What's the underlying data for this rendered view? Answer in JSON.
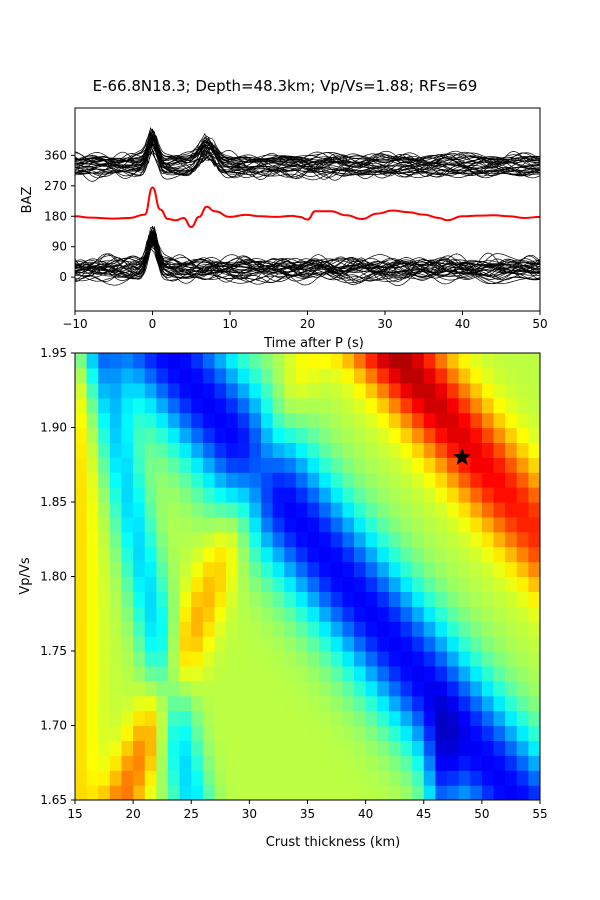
{
  "title": "E-66.8N18.3; Depth=48.3km; Vp/Vs=1.88; RFs=69",
  "chart_data": [
    {
      "type": "line",
      "panel": "receiver functions",
      "xlabel": "Time after P (s)",
      "ylabel": "BAZ",
      "xlim": [
        -10,
        50
      ],
      "ylim": [
        -100,
        500
      ],
      "xticks": [
        -10,
        0,
        10,
        20,
        30,
        40,
        50
      ],
      "yticks": [
        0,
        90,
        180,
        270,
        360
      ],
      "series": [
        {
          "role": "individual RFs (upper group)",
          "color": "#000000",
          "baseline": 330,
          "peaks": [
            {
              "t": 0,
              "amp": 90
            },
            {
              "t": 7,
              "amp": 60
            }
          ]
        },
        {
          "role": "stacked RF",
          "color": "#ff0000",
          "baseline": 180,
          "points": [
            [
              -10,
              180
            ],
            [
              -8,
              176
            ],
            [
              -5,
              173
            ],
            [
              -3,
              175
            ],
            [
              -1,
              185
            ],
            [
              0,
              265
            ],
            [
              1,
              200
            ],
            [
              2,
              172
            ],
            [
              3,
              168
            ],
            [
              4,
              175
            ],
            [
              5,
              148
            ],
            [
              6,
              178
            ],
            [
              7,
              208
            ],
            [
              8,
              195
            ],
            [
              10,
              178
            ],
            [
              12,
              184
            ],
            [
              14,
              180
            ],
            [
              16,
              178
            ],
            [
              18,
              181
            ],
            [
              19,
              178
            ],
            [
              20,
              170
            ],
            [
              21,
              195
            ],
            [
              23,
              195
            ],
            [
              25,
              183
            ],
            [
              27,
              172
            ],
            [
              29,
              188
            ],
            [
              31,
              197
            ],
            [
              33,
              192
            ],
            [
              35,
              185
            ],
            [
              37,
              175
            ],
            [
              38,
              168
            ],
            [
              40,
              180
            ],
            [
              42,
              182
            ],
            [
              44,
              183
            ],
            [
              46,
              180
            ],
            [
              48,
              175
            ],
            [
              50,
              178
            ]
          ]
        },
        {
          "role": "individual RFs (lower group)",
          "color": "#000000",
          "baseline": 20,
          "peaks": [
            {
              "t": 0,
              "amp": 110
            }
          ]
        }
      ]
    },
    {
      "type": "heatmap",
      "panel": "H-k stacking",
      "xlabel": "Crust thickness (km)",
      "ylabel": "Vp/Vs",
      "xlim": [
        15,
        55
      ],
      "ylim": [
        1.65,
        1.95
      ],
      "xticks": [
        15,
        20,
        25,
        30,
        35,
        40,
        45,
        50,
        55
      ],
      "yticks": [
        "1.65",
        "1.70",
        "1.75",
        "1.80",
        "1.85",
        "1.90",
        "1.95"
      ],
      "colormap": "jet",
      "grid_h_step": 1,
      "grid_k_step": 0.01,
      "best_fit": {
        "H": 48.3,
        "k": 1.88,
        "marker": "star"
      }
    }
  ]
}
